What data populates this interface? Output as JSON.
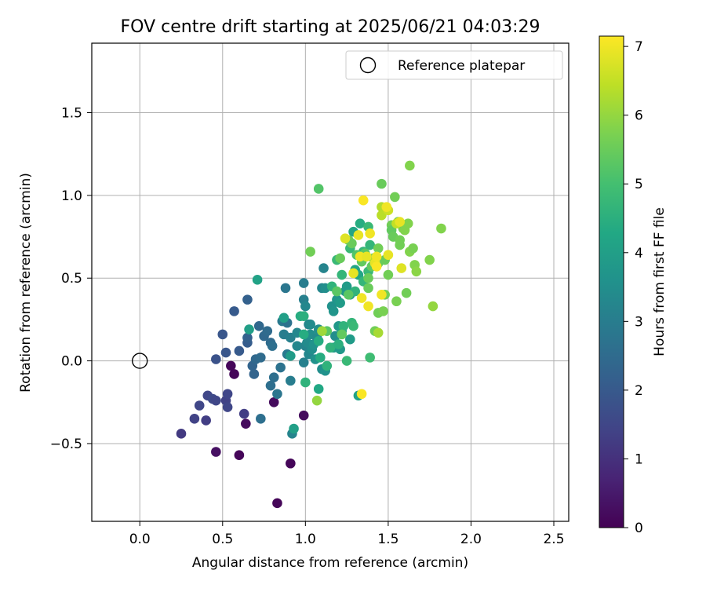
{
  "chart_data": {
    "type": "scatter",
    "title": "FOV centre drift starting at 2025/06/21 04:03:29",
    "xlabel": "Angular distance from reference (arcmin)",
    "ylabel": "Rotation from reference (arcmin)",
    "xlim": [
      -0.29,
      2.59
    ],
    "ylim": [
      -0.97,
      1.92
    ],
    "xticks": [
      0.0,
      0.5,
      1.0,
      1.5,
      2.0,
      2.5
    ],
    "xtick_labels": [
      "0.0",
      "0.5",
      "1.0",
      "1.5",
      "2.0",
      "2.5"
    ],
    "yticks": [
      -0.5,
      0.0,
      0.5,
      1.0,
      1.5
    ],
    "ytick_labels": [
      "−0.5",
      "0.0",
      "0.5",
      "1.0",
      "1.5"
    ],
    "grid": true,
    "legend": {
      "placement": "top-right",
      "entries": [
        "Reference platepar"
      ]
    },
    "reference_point": {
      "x": 0.0,
      "y": 0.0,
      "marker": "open-circle"
    },
    "colorbar": {
      "label": "Hours from first FF file",
      "colormap": "viridis",
      "range": [
        0,
        7.15
      ],
      "ticks": [
        0,
        1,
        2,
        3,
        4,
        5,
        6,
        7
      ],
      "tick_labels": [
        "0",
        "1",
        "2",
        "3",
        "4",
        "5",
        "6",
        "7"
      ]
    },
    "series": [
      {
        "columns": [
          "x",
          "y",
          "hours"
        ],
        "points": [
          [
            0.55,
            -0.03,
            0.1
          ],
          [
            0.57,
            -0.08,
            0.1
          ],
          [
            0.64,
            -0.38,
            0.2
          ],
          [
            0.6,
            -0.57,
            0.1
          ],
          [
            0.46,
            -0.55,
            0.3
          ],
          [
            0.81,
            -0.25,
            0.2
          ],
          [
            0.91,
            -0.62,
            0.1
          ],
          [
            0.83,
            -0.86,
            0.1
          ],
          [
            0.99,
            -0.33,
            0.2
          ],
          [
            0.25,
            -0.44,
            1.2
          ],
          [
            0.33,
            -0.35,
            1.4
          ],
          [
            0.36,
            -0.27,
            1.5
          ],
          [
            0.4,
            -0.36,
            1.3
          ],
          [
            0.41,
            -0.21,
            1.5
          ],
          [
            0.44,
            -0.23,
            1.6
          ],
          [
            0.46,
            -0.24,
            1.5
          ],
          [
            0.52,
            -0.24,
            1.4
          ],
          [
            0.53,
            -0.2,
            1.5
          ],
          [
            0.53,
            -0.28,
            1.5
          ],
          [
            0.63,
            -0.32,
            1.3
          ],
          [
            0.46,
            0.01,
            1.8
          ],
          [
            0.5,
            0.16,
            1.9
          ],
          [
            0.52,
            0.05,
            1.9
          ],
          [
            0.57,
            0.3,
            2.0
          ],
          [
            0.6,
            0.06,
            2.0
          ],
          [
            0.65,
            0.11,
            2.1
          ],
          [
            0.65,
            0.14,
            2.2
          ],
          [
            0.65,
            0.37,
            2.2
          ],
          [
            0.68,
            -0.03,
            2.3
          ],
          [
            0.69,
            -0.08,
            2.3
          ],
          [
            0.7,
            0.01,
            2.4
          ],
          [
            0.72,
            0.21,
            2.4
          ],
          [
            0.73,
            0.02,
            2.5
          ],
          [
            0.73,
            -0.35,
            2.6
          ],
          [
            0.75,
            0.15,
            2.4
          ],
          [
            0.77,
            0.18,
            2.5
          ],
          [
            0.79,
            -0.15,
            2.6
          ],
          [
            0.79,
            0.11,
            2.5
          ],
          [
            0.8,
            0.09,
            2.6
          ],
          [
            0.81,
            -0.1,
            2.6
          ],
          [
            0.83,
            -0.2,
            2.8
          ],
          [
            0.85,
            -0.04,
            2.7
          ],
          [
            0.86,
            0.24,
            2.9
          ],
          [
            0.87,
            0.16,
            3.0
          ],
          [
            0.88,
            0.44,
            2.8
          ],
          [
            0.89,
            0.23,
            2.7
          ],
          [
            0.89,
            0.04,
            2.9
          ],
          [
            0.91,
            0.14,
            3.1
          ],
          [
            0.91,
            -0.12,
            3.0
          ],
          [
            0.92,
            -0.44,
            3.2
          ],
          [
            0.95,
            0.17,
            3.3
          ],
          [
            0.95,
            0.09,
            3.3
          ],
          [
            0.99,
            0.47,
            3.0
          ],
          [
            0.99,
            0.37,
            3.1
          ],
          [
            1.0,
            0.33,
            3.3
          ],
          [
            0.99,
            -0.01,
            3.1
          ],
          [
            1.0,
            0.09,
            3.2
          ],
          [
            1.01,
            0.11,
            3.4
          ],
          [
            1.02,
            0.04,
            3.3
          ],
          [
            1.02,
            0.22,
            3.2
          ],
          [
            1.03,
            0.16,
            3.5
          ],
          [
            1.03,
            0.22,
            3.4
          ],
          [
            1.04,
            0.07,
            3.5
          ],
          [
            1.05,
            0.1,
            3.6
          ],
          [
            1.06,
            0.01,
            3.6
          ],
          [
            1.07,
            0.14,
            3.4
          ],
          [
            1.08,
            0.19,
            3.5
          ],
          [
            1.1,
            0.44,
            3.3
          ],
          [
            1.1,
            -0.05,
            3.5
          ],
          [
            1.11,
            0.56,
            3.2
          ],
          [
            1.12,
            -0.06,
            3.6
          ],
          [
            1.12,
            0.44,
            3.5
          ],
          [
            1.16,
            0.33,
            3.6
          ],
          [
            1.17,
            0.3,
            3.7
          ],
          [
            1.17,
            0.08,
            3.9
          ],
          [
            1.18,
            0.15,
            3.5
          ],
          [
            1.19,
            0.37,
            3.7
          ],
          [
            1.2,
            0.21,
            3.8
          ],
          [
            1.21,
            0.35,
            3.9
          ],
          [
            1.21,
            0.07,
            3.8
          ],
          [
            1.22,
            0.18,
            4.0
          ],
          [
            1.24,
            0.42,
            3.8
          ],
          [
            1.25,
            0.45,
            3.9
          ],
          [
            1.27,
            0.4,
            3.9
          ],
          [
            1.27,
            0.13,
            3.9
          ],
          [
            1.29,
            0.78,
            4.2
          ],
          [
            1.3,
            0.55,
            4.2
          ],
          [
            1.32,
            0.52,
            4.2
          ],
          [
            1.32,
            -0.21,
            4.1
          ],
          [
            1.33,
            0.83,
            4.4
          ],
          [
            0.66,
            0.19,
            4.0
          ],
          [
            0.71,
            0.49,
            4.1
          ],
          [
            0.87,
            0.26,
            4.0
          ],
          [
            0.91,
            0.03,
            3.9
          ],
          [
            0.93,
            -0.41,
            4.0
          ],
          [
            0.97,
            0.27,
            4.4
          ],
          [
            0.99,
            0.16,
            4.4
          ],
          [
            0.99,
            0.27,
            4.5
          ],
          [
            1.0,
            -0.13,
            4.6
          ],
          [
            1.08,
            0.12,
            4.4
          ],
          [
            1.08,
            -0.17,
            4.3
          ],
          [
            1.09,
            0.02,
            4.4
          ],
          [
            1.13,
            -0.03,
            4.6
          ],
          [
            1.15,
            0.08,
            4.6
          ],
          [
            1.16,
            0.45,
            4.6
          ],
          [
            1.19,
            0.61,
            4.8
          ],
          [
            1.2,
            0.1,
            4.5
          ],
          [
            1.22,
            0.52,
            4.7
          ],
          [
            1.23,
            0.21,
            4.6
          ],
          [
            1.25,
            0.0,
            4.8
          ],
          [
            1.27,
            0.68,
            4.8
          ],
          [
            1.28,
            0.23,
            4.7
          ],
          [
            1.29,
            0.21,
            4.8
          ],
          [
            1.3,
            0.42,
            4.6
          ],
          [
            1.35,
            0.66,
            4.7
          ],
          [
            1.35,
            0.48,
            4.7
          ],
          [
            1.38,
            0.54,
            4.8
          ],
          [
            1.38,
            0.81,
            4.8
          ],
          [
            1.39,
            0.7,
            4.7
          ],
          [
            1.39,
            0.02,
            4.9
          ],
          [
            1.08,
            1.04,
            5.2
          ],
          [
            1.03,
            0.66,
            5.6
          ],
          [
            1.13,
            0.18,
            5.3
          ],
          [
            1.19,
            0.42,
            5.3
          ],
          [
            1.21,
            0.62,
            5.5
          ],
          [
            1.22,
            0.16,
            5.4
          ],
          [
            1.26,
            0.4,
            5.3
          ],
          [
            1.26,
            0.73,
            5.5
          ],
          [
            1.28,
            0.71,
            5.5
          ],
          [
            1.31,
            0.64,
            5.2
          ],
          [
            1.34,
            0.6,
            5.4
          ],
          [
            1.36,
            0.65,
            5.3
          ],
          [
            1.38,
            0.44,
            5.5
          ],
          [
            1.38,
            0.5,
            5.5
          ],
          [
            1.4,
            0.57,
            5.4
          ],
          [
            1.41,
            0.62,
            5.5
          ],
          [
            1.42,
            0.18,
            5.6
          ],
          [
            1.44,
            0.68,
            5.6
          ],
          [
            1.44,
            0.59,
            5.5
          ],
          [
            1.44,
            0.29,
            5.6
          ],
          [
            1.46,
            1.07,
            5.5
          ],
          [
            1.47,
            0.3,
            5.7
          ],
          [
            1.48,
            0.4,
            5.6
          ],
          [
            1.48,
            0.61,
            5.5
          ],
          [
            1.5,
            0.52,
            5.6
          ],
          [
            1.52,
            0.82,
            5.6
          ],
          [
            1.52,
            0.79,
            5.4
          ],
          [
            1.53,
            0.75,
            5.5
          ],
          [
            1.54,
            0.99,
            5.6
          ],
          [
            1.55,
            0.36,
            5.7
          ],
          [
            1.56,
            0.84,
            5.5
          ],
          [
            1.57,
            0.7,
            5.6
          ],
          [
            1.57,
            0.73,
            5.6
          ],
          [
            1.59,
            0.8,
            5.7
          ],
          [
            1.6,
            0.79,
            5.8
          ],
          [
            1.61,
            0.41,
            5.6
          ],
          [
            1.62,
            0.83,
            5.8
          ],
          [
            1.63,
            1.18,
            5.8
          ],
          [
            1.63,
            0.66,
            5.8
          ],
          [
            1.65,
            0.68,
            5.7
          ],
          [
            1.66,
            0.58,
            5.8
          ],
          [
            1.67,
            0.54,
            5.9
          ],
          [
            1.75,
            0.61,
            5.8
          ],
          [
            1.77,
            0.33,
            6.0
          ],
          [
            1.82,
            0.8,
            5.8
          ],
          [
            1.07,
            -0.24,
            6.0
          ],
          [
            1.1,
            0.18,
            6.1
          ],
          [
            1.42,
            0.6,
            6.3
          ],
          [
            1.44,
            0.17,
            6.2
          ],
          [
            1.46,
            0.93,
            6.3
          ],
          [
            1.46,
            0.88,
            6.4
          ],
          [
            1.5,
            0.91,
            6.6
          ],
          [
            1.55,
            0.83,
            6.5
          ],
          [
            1.24,
            0.74,
            6.8
          ],
          [
            1.29,
            0.53,
            6.9
          ],
          [
            1.32,
            0.76,
            6.9
          ],
          [
            1.33,
            0.63,
            7.0
          ],
          [
            1.34,
            -0.2,
            7.1
          ],
          [
            1.34,
            0.38,
            7.0
          ],
          [
            1.35,
            0.97,
            7.1
          ],
          [
            1.37,
            0.63,
            6.9
          ],
          [
            1.38,
            0.33,
            7.0
          ],
          [
            1.39,
            0.77,
            7.0
          ],
          [
            1.42,
            0.59,
            6.9
          ],
          [
            1.43,
            0.63,
            7.0
          ],
          [
            1.43,
            0.57,
            7.1
          ],
          [
            1.46,
            0.4,
            7.0
          ],
          [
            1.49,
            0.93,
            7.0
          ],
          [
            1.5,
            0.64,
            6.9
          ],
          [
            1.57,
            0.84,
            6.9
          ],
          [
            1.58,
            0.56,
            6.8
          ]
        ]
      }
    ]
  }
}
